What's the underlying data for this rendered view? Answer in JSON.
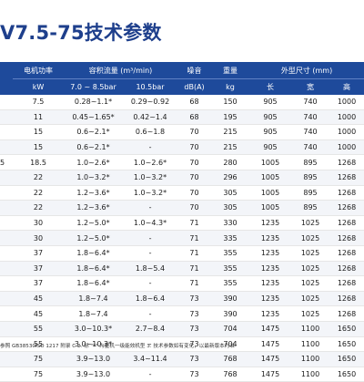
{
  "title": "V7.5-75技术参数",
  "table": {
    "header_row1": {
      "power": "电机功率",
      "flow": "容积流量 (m³/min)",
      "noise": "噪音",
      "weight": "重量",
      "dims": "外型尺寸 (mm)"
    },
    "header_row2": {
      "power_unit": "kW",
      "flow_a": "7.0 ~ 8.5bar",
      "flow_b": "10.5bar",
      "noise_unit": "dB(A)",
      "weight_unit": "kg",
      "length": "长",
      "width": "宽",
      "height": "高"
    },
    "rows": [
      {
        "model": "",
        "power": "7.5",
        "flow_a": "0.28~1.1*",
        "flow_b": "0.29~0.92",
        "noise": "68",
        "weight": "150",
        "length": "905",
        "width": "740",
        "height": "1000"
      },
      {
        "model": "",
        "power": "11",
        "flow_a": "0.45~1.65*",
        "flow_b": "0.42~1.4",
        "noise": "68",
        "weight": "195",
        "length": "905",
        "width": "740",
        "height": "1000"
      },
      {
        "model": "",
        "power": "15",
        "flow_a": "0.6~2.1*",
        "flow_b": "0.6~1.8",
        "noise": "70",
        "weight": "215",
        "length": "905",
        "width": "740",
        "height": "1000"
      },
      {
        "model": "",
        "power": "15",
        "flow_a": "0.6~2.1*",
        "flow_b": "-",
        "noise": "70",
        "weight": "215",
        "length": "905",
        "width": "740",
        "height": "1000"
      },
      {
        "model": "5",
        "power": "18.5",
        "flow_a": "1.0~2.6*",
        "flow_b": "1.0~2.6*",
        "noise": "70",
        "weight": "280",
        "length": "1005",
        "width": "895",
        "height": "1268"
      },
      {
        "model": "",
        "power": "22",
        "flow_a": "1.0~3.2*",
        "flow_b": "1.0~3.2*",
        "noise": "70",
        "weight": "296",
        "length": "1005",
        "width": "895",
        "height": "1268"
      },
      {
        "model": "",
        "power": "22",
        "flow_a": "1.2~3.6*",
        "flow_b": "1.0~3.2*",
        "noise": "70",
        "weight": "305",
        "length": "1005",
        "width": "895",
        "height": "1268"
      },
      {
        "model": "",
        "power": "22",
        "flow_a": "1.2~3.6*",
        "flow_b": "-",
        "noise": "70",
        "weight": "305",
        "length": "1005",
        "width": "895",
        "height": "1268"
      },
      {
        "model": "",
        "power": "30",
        "flow_a": "1.2~5.0*",
        "flow_b": "1.0~4.3*",
        "noise": "71",
        "weight": "330",
        "length": "1235",
        "width": "1025",
        "height": "1268"
      },
      {
        "model": "",
        "power": "30",
        "flow_a": "1.2~5.0*",
        "flow_b": "-",
        "noise": "71",
        "weight": "335",
        "length": "1235",
        "width": "1025",
        "height": "1268"
      },
      {
        "model": "",
        "power": "37",
        "flow_a": "1.8~6.4*",
        "flow_b": "-",
        "noise": "71",
        "weight": "355",
        "length": "1235",
        "width": "1025",
        "height": "1268"
      },
      {
        "model": "",
        "power": "37",
        "flow_a": "1.8~6.4*",
        "flow_b": "1.8~5.4",
        "noise": "71",
        "weight": "355",
        "length": "1235",
        "width": "1025",
        "height": "1268"
      },
      {
        "model": "",
        "power": "37",
        "flow_a": "1.8~6.4*",
        "flow_b": "-",
        "noise": "71",
        "weight": "355",
        "length": "1235",
        "width": "1025",
        "height": "1268"
      },
      {
        "model": "",
        "power": "45",
        "flow_a": "1.8~7.4",
        "flow_b": "1.8~6.4",
        "noise": "73",
        "weight": "390",
        "length": "1235",
        "width": "1025",
        "height": "1268"
      },
      {
        "model": "",
        "power": "45",
        "flow_a": "1.8~7.4",
        "flow_b": "-",
        "noise": "73",
        "weight": "390",
        "length": "1235",
        "width": "1025",
        "height": "1268"
      },
      {
        "model": "",
        "power": "55",
        "flow_a": "3.0~10.3*",
        "flow_b": "2.7~8.4",
        "noise": "73",
        "weight": "704",
        "length": "1475",
        "width": "1100",
        "height": "1650"
      },
      {
        "model": "",
        "power": "55",
        "flow_a": "3.0~10.3*",
        "flow_b": "-",
        "noise": "73",
        "weight": "704",
        "length": "1475",
        "width": "1100",
        "height": "1650"
      },
      {
        "model": "",
        "power": "75",
        "flow_a": "3.9~13.0",
        "flow_b": "3.4~11.4",
        "noise": "73",
        "weight": "768",
        "length": "1475",
        "width": "1100",
        "height": "1650"
      },
      {
        "model": "",
        "power": "75",
        "flow_a": "3.9~13.0",
        "flow_b": "-",
        "noise": "73",
        "weight": "768",
        "length": "1475",
        "width": "1100",
        "height": "1650"
      }
    ]
  },
  "footnote": "参照 GB38530ISO 1217 附录 C  2. 标 \"*\" 为整机一级能效机型  3. 技术参数如有变化，以最新版本为准"
}
